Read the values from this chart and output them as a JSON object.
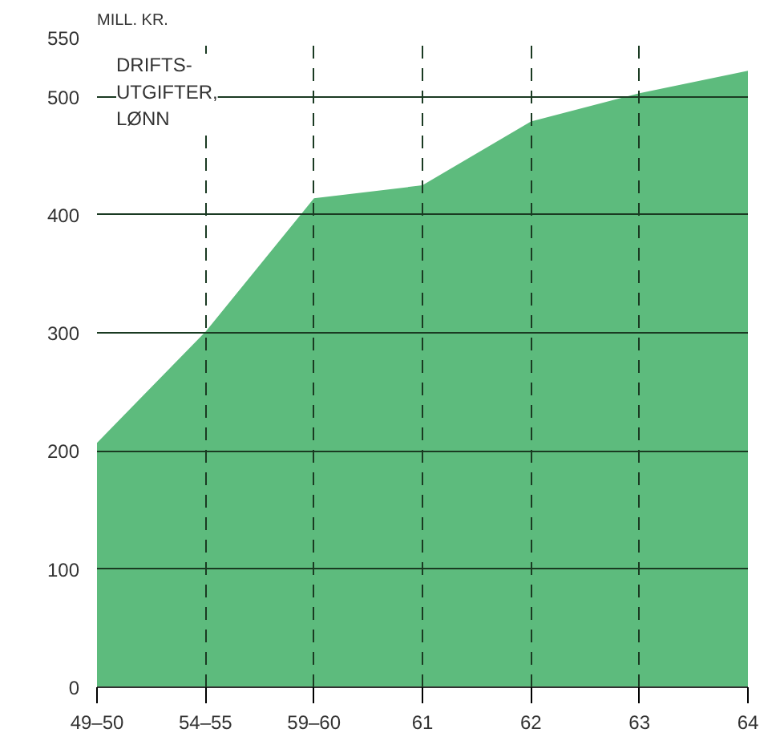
{
  "chart_data": {
    "type": "area",
    "ylabel": "MILL. KR.",
    "annotations": [
      "DRIFTS-\nUTGIFTER,\nLØNN"
    ],
    "categories": [
      "49–50",
      "54–55",
      "59–60",
      "61",
      "62",
      "63",
      "64"
    ],
    "series": [
      {
        "color": "#5dbb7d",
        "values": [
          207,
          301,
          414,
          425,
          479,
          503,
          522
        ]
      }
    ],
    "ylim": [
      0,
      550
    ],
    "yticks": [
      0,
      100,
      200,
      300,
      400,
      500,
      550
    ],
    "grid": true
  }
}
